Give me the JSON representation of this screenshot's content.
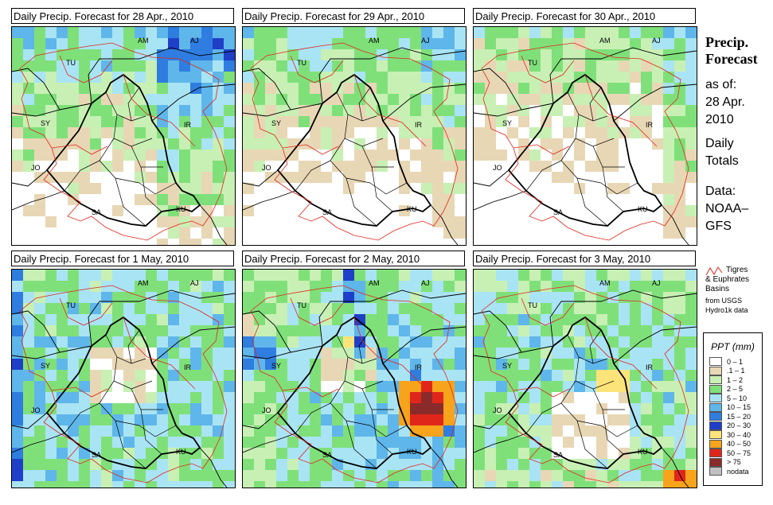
{
  "panels": [
    {
      "title": "Daily Precip. Forecast for  28 Apr., 2010"
    },
    {
      "title": "Daily Precip. Forecast for  29 Apr., 2010"
    },
    {
      "title": "Daily Precip. Forecast for  30 Apr., 2010"
    },
    {
      "title": "Daily Precip. Forecast for  1 May, 2010"
    },
    {
      "title": "Daily Precip. Forecast for  2 May, 2010"
    },
    {
      "title": "Daily Precip. Forecast for  3 May, 2010"
    }
  ],
  "map_labels": [
    "AM",
    "AJ",
    "TU",
    "SY",
    "IR",
    "JO",
    "SA",
    "KU"
  ],
  "sidebar": {
    "title_line1": "Precip.",
    "title_line2": "Forecast",
    "line1": "as of:",
    "line2": "28 Apr.",
    "line3": "2010",
    "line4": "Daily",
    "line5": "Totals",
    "line6": "Data:",
    "line7": "NOAA–",
    "line8": "GFS"
  },
  "basin_legend": {
    "line1": "Tigres",
    "line2": "& Euphrates",
    "line3": "Basins",
    "line4": "from USGS",
    "line5": "Hydro1k data"
  },
  "legend": {
    "title": "PPT (mm)",
    "items": [
      {
        "label": "0 – 1",
        "color": "#ffffff"
      },
      {
        "label": ".1 – 1",
        "color": "#e8d7b5"
      },
      {
        "label": "1 – 2",
        "color": "#c8f0b4"
      },
      {
        "label": "2 – 5",
        "color": "#7fe07a"
      },
      {
        "label": "5 – 10",
        "color": "#a9e4f4"
      },
      {
        "label": "10 – 15",
        "color": "#5fb6ea"
      },
      {
        "label": "15 – 20",
        "color": "#2f7de0"
      },
      {
        "label": "20 – 30",
        "color": "#1f3fc8"
      },
      {
        "label": "30 – 40",
        "color": "#fde47a"
      },
      {
        "label": "40 – 50",
        "color": "#f7a31b"
      },
      {
        "label": "50 – 75",
        "color": "#e0261b"
      },
      {
        "label": "> 75",
        "color": "#8a2a2a"
      },
      {
        "label": "nodata",
        "color": "#c0c0c0"
      }
    ]
  }
}
